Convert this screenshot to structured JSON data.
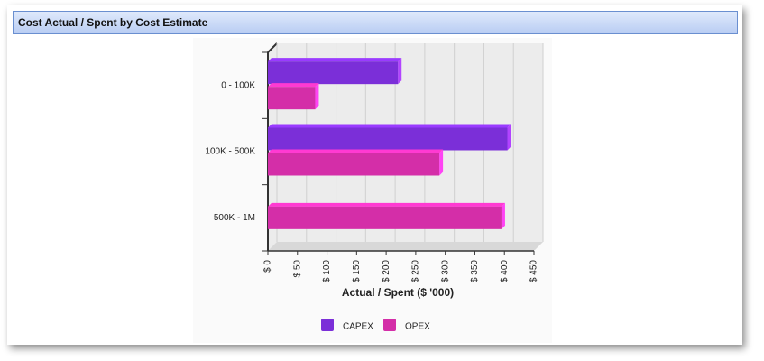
{
  "chart_data": {
    "type": "bar",
    "orientation": "horizontal",
    "title": "Cost Actual / Spent by Cost Estimate",
    "categories": [
      "0 - 100K",
      "100K - 500K",
      "500K - 1M"
    ],
    "series": [
      {
        "name": "CAPEX",
        "color": "#7b2fd8",
        "values": [
          220,
          405,
          null
        ]
      },
      {
        "name": "OPEX",
        "color": "#d42ea8",
        "values": [
          80,
          290,
          395
        ]
      }
    ],
    "xlabel": "Actual / Spent ($ '000)",
    "xlim": [
      0,
      450
    ],
    "xticks": [
      {
        "value": 0,
        "label": "$ 0"
      },
      {
        "value": 50,
        "label": "$ 50"
      },
      {
        "value": 100,
        "label": "$ 100"
      },
      {
        "value": 150,
        "label": "$ 150"
      },
      {
        "value": 200,
        "label": "$ 200"
      },
      {
        "value": 250,
        "label": "$ 250"
      },
      {
        "value": 300,
        "label": "$ 300"
      },
      {
        "value": 350,
        "label": "$ 350"
      },
      {
        "value": 400,
        "label": "$ 400"
      },
      {
        "value": 450,
        "label": "$ 450"
      }
    ],
    "grid": true,
    "legend": "bottom"
  }
}
